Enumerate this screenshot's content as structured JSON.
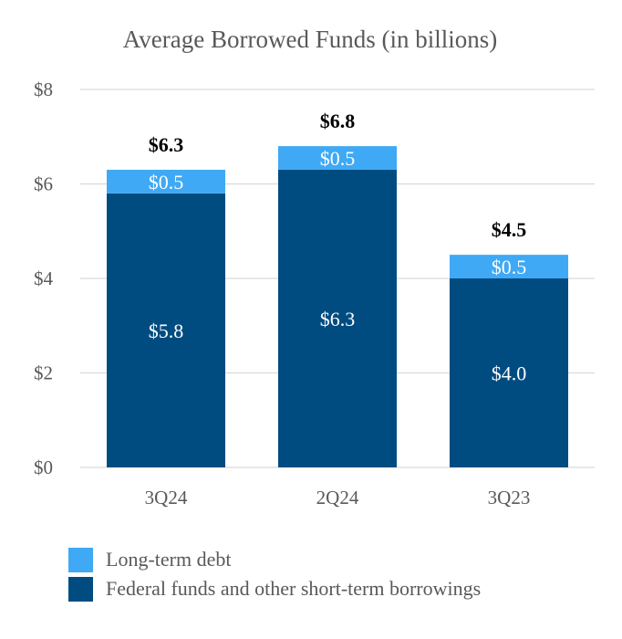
{
  "chart_data": {
    "type": "bar",
    "stacked": true,
    "title": "Average Borrowed Funds (in billions)",
    "xlabel": "",
    "ylabel": "",
    "ylim": [
      0,
      8
    ],
    "yticks": [
      0,
      2,
      4,
      6,
      8
    ],
    "ytick_labels": [
      "$0",
      "$2",
      "$4",
      "$6",
      "$8"
    ],
    "grid": true,
    "categories": [
      "3Q24",
      "2Q24",
      "3Q23"
    ],
    "series": [
      {
        "name": "Federal funds and other short-term borrowings",
        "color": "#004C80",
        "values": [
          5.8,
          6.3,
          4.0
        ],
        "labels": [
          "$5.8",
          "$6.3",
          "$4.0"
        ]
      },
      {
        "name": "Long-term debt",
        "color": "#3FA9F5",
        "values": [
          0.5,
          0.5,
          0.5
        ],
        "labels": [
          "$0.5",
          "$0.5",
          "$0.5"
        ]
      }
    ],
    "totals": [
      6.3,
      6.8,
      4.5
    ],
    "total_labels": [
      "$6.3",
      "$6.8",
      "$4.5"
    ],
    "legend": {
      "placement": "bottom-left",
      "items": [
        {
          "label": "Long-term debt",
          "color": "#3FA9F5"
        },
        {
          "label": "Federal funds and other short-term borrowings",
          "color": "#004C80"
        }
      ]
    }
  }
}
